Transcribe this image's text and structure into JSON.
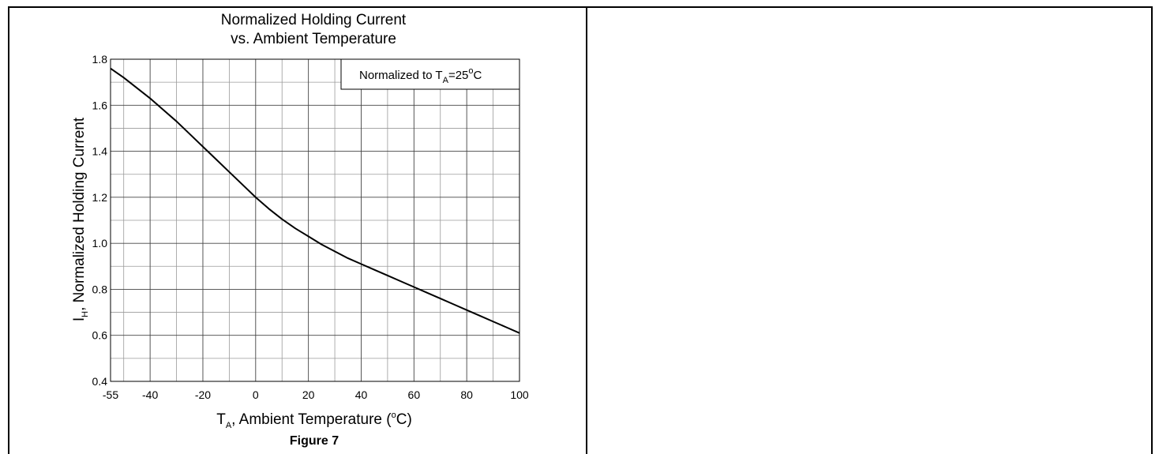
{
  "chart_data": {
    "type": "line",
    "title_line1": "Normalized Holding Current",
    "title_line2": "vs. Ambient Temperature",
    "xlabel": {
      "symbol": "T",
      "subscript": "A",
      "text": ", Ambient Temperature (",
      "degree": "o",
      "unit": "C)"
    },
    "ylabel": {
      "symbol": "I",
      "subscript": "H",
      "text": ", Normalized Holding Current"
    },
    "legend": {
      "prefix": "Normalized to T",
      "subscript": "A",
      "value": "=25",
      "degree": "o",
      "unit": "C",
      "placement": "top-right"
    },
    "figure_label": "Figure 7",
    "xlim": [
      -55,
      100
    ],
    "ylim": [
      0.4,
      1.8
    ],
    "x_ticks": [
      -55,
      -40,
      -20,
      0,
      20,
      40,
      60,
      80,
      100
    ],
    "x_tick_labels": [
      "-55",
      "-40",
      "-20",
      "0",
      "20",
      "40",
      "60",
      "80",
      "100"
    ],
    "y_ticks": [
      0.4,
      0.6,
      0.8,
      1.0,
      1.2,
      1.4,
      1.6,
      1.8
    ],
    "y_tick_labels": [
      "0.4",
      "0.6",
      "0.8",
      "1.0",
      "1.2",
      "1.4",
      "1.6",
      "1.8"
    ],
    "grid": true,
    "x_minor_grid": [
      -50,
      -30,
      -10,
      10,
      30,
      50,
      70,
      90
    ],
    "y_minor_grid": [
      0.5,
      0.7,
      0.9,
      1.1,
      1.3,
      1.5,
      1.7
    ],
    "series": [
      {
        "x": [
          -55,
          -50,
          -45,
          -40,
          -35,
          -30,
          -25,
          -20,
          -15,
          -10,
          -5,
          0,
          5,
          10,
          15,
          20,
          25,
          30,
          35,
          40,
          45,
          50,
          55,
          60,
          65,
          70,
          75,
          80,
          85,
          90,
          95,
          100
        ],
        "y": [
          1.76,
          1.72,
          1.675,
          1.63,
          1.58,
          1.53,
          1.475,
          1.42,
          1.365,
          1.31,
          1.255,
          1.2,
          1.15,
          1.105,
          1.065,
          1.03,
          0.995,
          0.965,
          0.935,
          0.91,
          0.885,
          0.86,
          0.835,
          0.81,
          0.785,
          0.76,
          0.735,
          0.71,
          0.685,
          0.66,
          0.635,
          0.61
        ]
      }
    ]
  }
}
